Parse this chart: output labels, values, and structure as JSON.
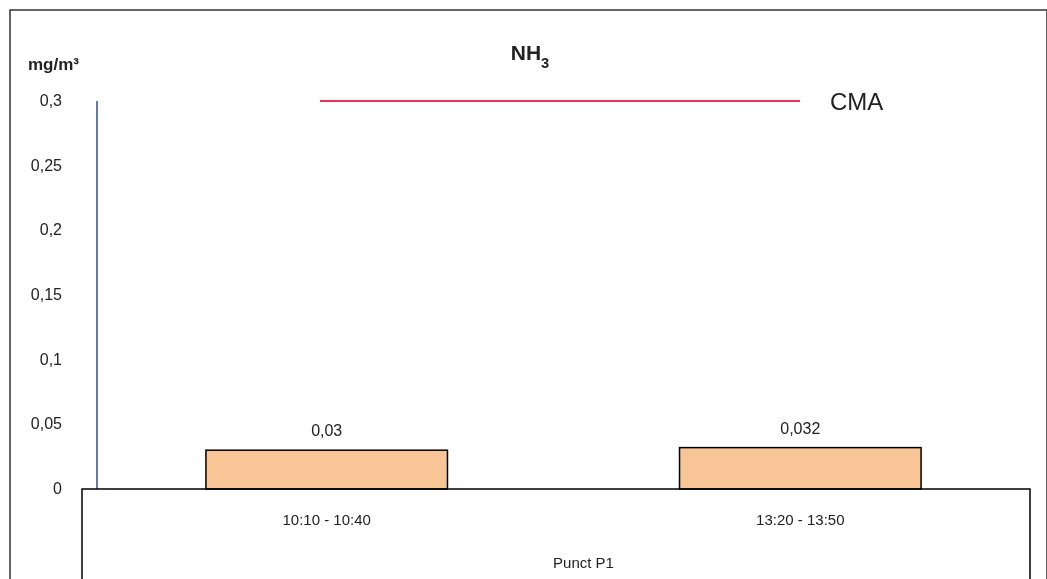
{
  "chart_data": {
    "type": "bar",
    "title": "NH$_{3}$",
    "ylabel": "mg/m³",
    "xlabel": "Punct P1",
    "categories": [
      "10:10 - 10:40",
      "13:20 - 13:50"
    ],
    "values": [
      0.03,
      0.032
    ],
    "value_labels": [
      "0,03",
      "0,032"
    ],
    "color": "#f7c596",
    "ylim": [
      0,
      0.3
    ],
    "yticks": [
      {
        "value": 0,
        "label": "0"
      },
      {
        "value": 0.05,
        "label": "0,05"
      },
      {
        "value": 0.1,
        "label": "0,1"
      },
      {
        "value": 0.15,
        "label": "0,15"
      },
      {
        "value": 0.2,
        "label": "0,2"
      },
      {
        "value": 0.25,
        "label": "0,25"
      },
      {
        "value": 0.3,
        "label": "0,3"
      }
    ],
    "ref_lines": [
      {
        "axis": "y",
        "value": 0.3,
        "label": "CMA",
        "color": "#e8335a"
      }
    ],
    "grid": false
  }
}
